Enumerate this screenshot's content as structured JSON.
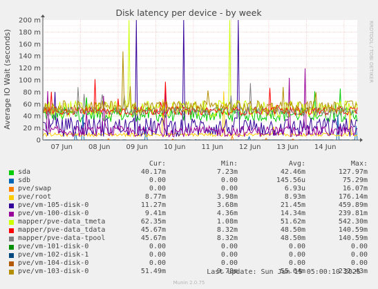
{
  "chart_data": {
    "type": "line",
    "title": "Disk latency per device - by week",
    "ylabel": "Average IO Wait (seconds)",
    "side_label": "RRDTOOL / TOBI OETIKER",
    "ylim": [
      0,
      200
    ],
    "yticks": [
      {
        "v": 0,
        "label": "0"
      },
      {
        "v": 20,
        "label": "20 m"
      },
      {
        "v": 40,
        "label": "40 m"
      },
      {
        "v": 60,
        "label": "60 m"
      },
      {
        "v": 80,
        "label": "80 m"
      },
      {
        "v": 100,
        "label": "100 m"
      },
      {
        "v": 120,
        "label": "120 m"
      },
      {
        "v": 140,
        "label": "140 m"
      },
      {
        "v": 160,
        "label": "160 m"
      },
      {
        "v": 180,
        "label": "180 m"
      },
      {
        "v": 200,
        "label": "200 m"
      }
    ],
    "yunit": "milliseconds",
    "xlim": [
      0,
      8.35
    ],
    "xticks": [
      "07 Jun",
      "08 Jun",
      "09 Jun",
      "10 Jun",
      "11 Jun",
      "12 Jun",
      "13 Jun",
      "14 Jun"
    ],
    "grid": true,
    "series": [
      {
        "name": "sda",
        "color": "#00cc00",
        "level": 42.5,
        "spread": 12,
        "peak": 128
      },
      {
        "name": "sdb",
        "color": "#0066b3",
        "level": 0.15,
        "spread": 0.2,
        "peak": 75
      },
      {
        "name": "pve/swap",
        "color": "#ff8000",
        "level": 0.007,
        "spread": 0.01,
        "peak": 16
      },
      {
        "name": "pve/root",
        "color": "#ffcc00",
        "level": 8.9,
        "spread": 3,
        "peak": 176
      },
      {
        "name": "pve/vm-105-disk-0",
        "color": "#330099",
        "level": 21.5,
        "spread": 16,
        "peak": 460
      },
      {
        "name": "pve/vm-100-disk-0",
        "color": "#990099",
        "level": 14.3,
        "spread": 9,
        "peak": 240
      },
      {
        "name": "mapper/pve-data_tmeta",
        "color": "#ccff00",
        "level": 51.6,
        "spread": 14,
        "peak": 542
      },
      {
        "name": "mapper/pve-data_tdata",
        "color": "#ff0000",
        "level": 48.5,
        "spread": 7,
        "peak": 141
      },
      {
        "name": "mapper/pve-data-tpool",
        "color": "#808080",
        "level": 48.5,
        "spread": 7,
        "peak": 141
      },
      {
        "name": "pve/vm-101-disk-0",
        "color": "#008f00",
        "level": 0,
        "spread": 0,
        "peak": 0
      },
      {
        "name": "pve/vm-102-disk-1",
        "color": "#00487d",
        "level": 0,
        "spread": 0,
        "peak": 0
      },
      {
        "name": "pve/vm-104-disk-0",
        "color": "#b35a00",
        "level": 0,
        "spread": 0,
        "peak": 0
      },
      {
        "name": "pve/vm-103-disk-0",
        "color": "#b38f00",
        "level": 55.6,
        "spread": 10,
        "peak": 232
      }
    ]
  },
  "legend": {
    "headers": {
      "cur": "Cur:",
      "min": "Min:",
      "avg": "Avg:",
      "max": "Max:"
    },
    "rows": [
      {
        "name": "sda",
        "color": "#00cc00",
        "cur": "40.17m",
        "min": "7.23m",
        "avg": "42.46m",
        "max": "127.97m"
      },
      {
        "name": "sdb",
        "color": "#0066b3",
        "cur": "0.00",
        "min": "0.00",
        "avg": "145.56u",
        "max": "75.29m"
      },
      {
        "name": "pve/swap",
        "color": "#ff8000",
        "cur": "0.00",
        "min": "0.00",
        "avg": "6.93u",
        "max": "16.07m"
      },
      {
        "name": "pve/root",
        "color": "#ffcc00",
        "cur": "8.77m",
        "min": "3.98m",
        "avg": "8.93m",
        "max": "176.14m"
      },
      {
        "name": "pve/vm-105-disk-0",
        "color": "#330099",
        "cur": "11.27m",
        "min": "3.68m",
        "avg": "21.45m",
        "max": "459.89m"
      },
      {
        "name": "pve/vm-100-disk-0",
        "color": "#990099",
        "cur": "9.41m",
        "min": "4.36m",
        "avg": "14.34m",
        "max": "239.81m"
      },
      {
        "name": "mapper/pve-data_tmeta",
        "color": "#ccff00",
        "cur": "62.35m",
        "min": "1.08m",
        "avg": "51.62m",
        "max": "542.30m"
      },
      {
        "name": "mapper/pve-data_tdata",
        "color": "#ff0000",
        "cur": "45.67m",
        "min": "8.32m",
        "avg": "48.50m",
        "max": "140.59m"
      },
      {
        "name": "mapper/pve-data-tpool",
        "color": "#808080",
        "cur": "45.67m",
        "min": "8.32m",
        "avg": "48.50m",
        "max": "140.59m"
      },
      {
        "name": "pve/vm-101-disk-0",
        "color": "#008f00",
        "cur": "0.00",
        "min": "0.00",
        "avg": "0.00",
        "max": "0.00"
      },
      {
        "name": "pve/vm-102-disk-1",
        "color": "#00487d",
        "cur": "0.00",
        "min": "0.00",
        "avg": "0.00",
        "max": "0.00"
      },
      {
        "name": "pve/vm-104-disk-0",
        "color": "#b35a00",
        "cur": "0.00",
        "min": "0.00",
        "avg": "0.00",
        "max": "0.00"
      },
      {
        "name": "pve/vm-103-disk-0",
        "color": "#b38f00",
        "cur": "51.49m",
        "min": "9.78m",
        "avg": "55.64m",
        "max": "232.43m"
      }
    ]
  },
  "last_update": "Last update: Sun Jun 15 05:00:10 2025",
  "version": "Munin 2.0.75"
}
